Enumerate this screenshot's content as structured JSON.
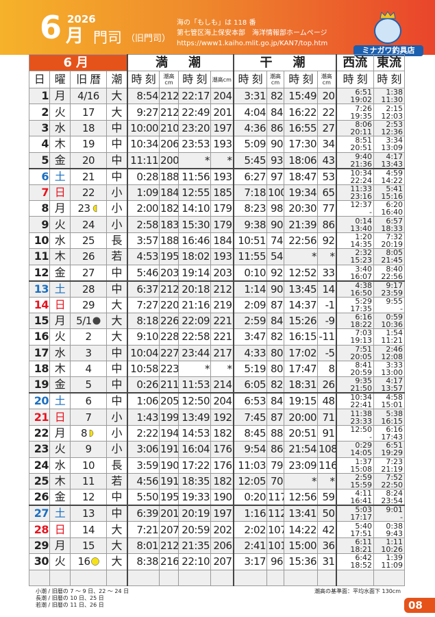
{
  "header": {
    "day_big": "6",
    "year": "2026",
    "month": "月",
    "place": "門司",
    "old_place": "（旧門司）",
    "info": [
      "海の「もしも」は 118 番",
      "第七管区海上保安本部　海洋情報部ホームページ",
      "https://www1.kaiho.mlit.go.jp/KAN7/top.htm"
    ],
    "logo": "ミナガワ釣具店"
  },
  "colors": {
    "accent": "#e5531a",
    "saturday": "#1a6fc0",
    "sunday": "#e5141e",
    "moon": "#f5e11a",
    "new_moon": "#444444"
  },
  "table": {
    "group_headers": {
      "month": "6月",
      "high": "満　潮",
      "low": "干　潮",
      "west": "西流",
      "east": "東流"
    },
    "col_headers": [
      "日",
      "曜",
      "旧 暦",
      "潮",
      "時 刻",
      "潮高cm",
      "時 刻",
      "潮高cm",
      "時 刻",
      "潮高cm",
      "時 刻",
      "潮高cm",
      "時 刻",
      "時 刻"
    ],
    "rows": [
      [
        "1",
        "月",
        "4/16",
        "",
        "大",
        "8:54",
        "212",
        "22:17",
        "204",
        "3:31",
        "82",
        "15:49",
        "20",
        "6:51",
        "19:02",
        "1:38",
        "11:30"
      ],
      [
        "2",
        "火",
        "17",
        "",
        "大",
        "9:27",
        "212",
        "22:49",
        "201",
        "4:04",
        "84",
        "16:22",
        "22",
        "7:26",
        "19:35",
        "2:15",
        "12:03"
      ],
      [
        "3",
        "水",
        "18",
        "",
        "中",
        "10:00",
        "210",
        "23:20",
        "197",
        "4:36",
        "86",
        "16:55",
        "27",
        "8:06",
        "20:11",
        "2:53",
        "12:36"
      ],
      [
        "4",
        "木",
        "19",
        "",
        "中",
        "10:34",
        "206",
        "23:53",
        "193",
        "5:09",
        "90",
        "17:30",
        "34",
        "8:51",
        "20:51",
        "3:34",
        "13:09"
      ],
      [
        "5",
        "金",
        "20",
        "",
        "中",
        "11:11",
        "200",
        "*",
        "*",
        "5:45",
        "93",
        "18:06",
        "43",
        "9:40",
        "21:36",
        "4:17",
        "13:43"
      ],
      [
        "6",
        "土",
        "21",
        "",
        "中",
        "0:28",
        "188",
        "11:56",
        "193",
        "6:27",
        "97",
        "18:47",
        "53",
        "10:34",
        "22:24",
        "4:59",
        "14:22"
      ],
      [
        "7",
        "日",
        "22",
        "",
        "小",
        "1:09",
        "184",
        "12:55",
        "185",
        "7:18",
        "100",
        "19:34",
        "65",
        "11:33",
        "23:16",
        "5:41",
        "15:16"
      ],
      [
        "8",
        "月",
        "23",
        "first-quarter",
        "小",
        "2:00",
        "182",
        "14:10",
        "179",
        "8:23",
        "98",
        "20:30",
        "77",
        "12:37",
        "-",
        "6:20",
        "16:40"
      ],
      [
        "9",
        "火",
        "24",
        "",
        "小",
        "2:58",
        "183",
        "15:30",
        "179",
        "9:38",
        "90",
        "21:39",
        "86",
        "0:14",
        "13:40",
        "6:57",
        "18:33"
      ],
      [
        "10",
        "水",
        "25",
        "",
        "長",
        "3:57",
        "188",
        "16:46",
        "184",
        "10:51",
        "74",
        "22:56",
        "92",
        "1:20",
        "14:35",
        "7:32",
        "20:19"
      ],
      [
        "11",
        "木",
        "26",
        "",
        "若",
        "4:53",
        "195",
        "18:02",
        "193",
        "11:55",
        "54",
        "*",
        "*",
        "2:32",
        "15:23",
        "8:05",
        "21:45"
      ],
      [
        "12",
        "金",
        "27",
        "",
        "中",
        "5:46",
        "203",
        "19:14",
        "203",
        "0:10",
        "92",
        "12:52",
        "33",
        "3:40",
        "16:07",
        "8:40",
        "22:56"
      ],
      [
        "13",
        "土",
        "28",
        "",
        "中",
        "6:37",
        "212",
        "20:18",
        "212",
        "1:14",
        "90",
        "13:45",
        "14",
        "4:38",
        "16:50",
        "9:17",
        "23:59"
      ],
      [
        "14",
        "日",
        "29",
        "",
        "大",
        "7:27",
        "220",
        "21:16",
        "219",
        "2:09",
        "87",
        "14:37",
        "-1",
        "5:29",
        "17:35",
        "9:55",
        "-"
      ],
      [
        "15",
        "月",
        "5/1",
        "new",
        "大",
        "8:18",
        "226",
        "22:09",
        "221",
        "2:59",
        "84",
        "15:26",
        "-9",
        "6:16",
        "18:22",
        "0:59",
        "10:36"
      ],
      [
        "16",
        "火",
        "2",
        "",
        "大",
        "9:10",
        "228",
        "22:58",
        "221",
        "3:47",
        "82",
        "16:15",
        "-11",
        "7:03",
        "19:13",
        "1:54",
        "11:21"
      ],
      [
        "17",
        "水",
        "3",
        "",
        "中",
        "10:04",
        "227",
        "23:44",
        "217",
        "4:33",
        "80",
        "17:02",
        "-5",
        "7:51",
        "20:05",
        "2:46",
        "12:08"
      ],
      [
        "18",
        "木",
        "4",
        "",
        "中",
        "10:58",
        "223",
        "*",
        "*",
        "5:19",
        "80",
        "17:47",
        "8",
        "8:41",
        "20:59",
        "3:33",
        "13:00"
      ],
      [
        "19",
        "金",
        "5",
        "",
        "中",
        "0:26",
        "211",
        "11:53",
        "214",
        "6:05",
        "82",
        "18:31",
        "26",
        "9:35",
        "21:50",
        "4:17",
        "13:57"
      ],
      [
        "20",
        "土",
        "6",
        "",
        "中",
        "1:06",
        "205",
        "12:50",
        "204",
        "6:53",
        "84",
        "19:15",
        "48",
        "10:34",
        "22:41",
        "4:58",
        "15:01"
      ],
      [
        "21",
        "日",
        "7",
        "",
        "小",
        "1:43",
        "199",
        "13:49",
        "192",
        "7:45",
        "87",
        "20:00",
        "71",
        "11:38",
        "23:33",
        "5:38",
        "16:15"
      ],
      [
        "22",
        "月",
        "8",
        "first-quarter-r",
        "小",
        "2:22",
        "194",
        "14:53",
        "182",
        "8:45",
        "88",
        "20:51",
        "91",
        "12:50",
        "-",
        "6:16",
        "17:43"
      ],
      [
        "23",
        "火",
        "9",
        "",
        "小",
        "3:06",
        "191",
        "16:04",
        "176",
        "9:54",
        "86",
        "21:54",
        "108",
        "0:29",
        "14:05",
        "6:51",
        "19:29"
      ],
      [
        "24",
        "水",
        "10",
        "",
        "長",
        "3:59",
        "190",
        "17:22",
        "176",
        "11:03",
        "79",
        "23:09",
        "116",
        "1:37",
        "15:08",
        "7:23",
        "21:19"
      ],
      [
        "25",
        "木",
        "11",
        "",
        "若",
        "4:56",
        "191",
        "18:35",
        "182",
        "12:05",
        "70",
        "*",
        "*",
        "2:59",
        "15:59",
        "7:52",
        "22:50"
      ],
      [
        "26",
        "金",
        "12",
        "",
        "中",
        "5:50",
        "195",
        "19:33",
        "190",
        "0:20",
        "117",
        "12:56",
        "59",
        "4:11",
        "16:41",
        "8:24",
        "23:54"
      ],
      [
        "27",
        "土",
        "13",
        "",
        "中",
        "6:39",
        "201",
        "20:19",
        "197",
        "1:16",
        "112",
        "13:41",
        "50",
        "5:03",
        "17:17",
        "9:01",
        "-"
      ],
      [
        "28",
        "日",
        "14",
        "",
        "大",
        "7:21",
        "207",
        "20:59",
        "202",
        "2:02",
        "107",
        "14:22",
        "42",
        "5:40",
        "17:51",
        "0:38",
        "9:43"
      ],
      [
        "29",
        "月",
        "15",
        "",
        "大",
        "8:01",
        "212",
        "21:35",
        "206",
        "2:41",
        "101",
        "15:00",
        "36",
        "6:11",
        "18:21",
        "1:11",
        "10:26"
      ],
      [
        "30",
        "火",
        "16",
        "full",
        "大",
        "8:38",
        "216",
        "22:10",
        "207",
        "3:17",
        "96",
        "15:36",
        "31",
        "6:42",
        "18:52",
        "1:39",
        "11:09"
      ]
    ]
  },
  "footer": {
    "notes": [
      "小潮 / 旧暦の 7 ～ 9 日、22 ～ 24 日",
      "長潮 / 旧暦の 10 日、25 日",
      "若潮 / 旧暦の 11 日、26 日"
    ],
    "datum": "潮高の基準面：平均水面下 130cm",
    "page": "08"
  }
}
